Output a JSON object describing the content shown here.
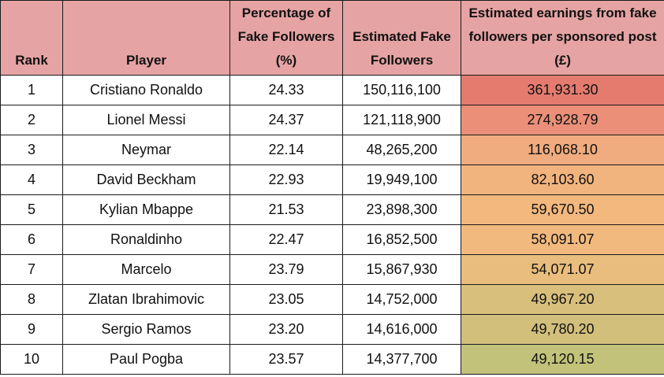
{
  "headers": {
    "rank": "Rank",
    "player": "Player",
    "pct": "Percentage of Fake Followers (%)",
    "fake": "Estimated Fake Followers",
    "earnings": "Estimated earnings from fake followers per sponsored post (£)"
  },
  "header_bg": "#e6a3a3",
  "rows": [
    {
      "rank": "1",
      "player": "Cristiano Ronaldo",
      "pct": "24.33",
      "fake": "150,116,100",
      "earnings": "361,931.30",
      "color": "#e57b6f"
    },
    {
      "rank": "2",
      "player": "Lionel Messi",
      "pct": "24.37",
      "fake": "121,118,900",
      "earnings": "274,928.79",
      "color": "#eb8f78"
    },
    {
      "rank": "3",
      "player": "Neymar",
      "pct": "22.14",
      "fake": "48,265,200",
      "earnings": "116,068.10",
      "color": "#f0ac7e"
    },
    {
      "rank": "4",
      "player": "David Beckham",
      "pct": "22.93",
      "fake": "19,949,100",
      "earnings": "82,103.60",
      "color": "#f2b47e"
    },
    {
      "rank": "5",
      "player": "Kylian Mbappe",
      "pct": "21.53",
      "fake": "23,898,300",
      "earnings": "59,670.50",
      "color": "#f3b87e"
    },
    {
      "rank": "6",
      "player": "Ronaldinho",
      "pct": "22.47",
      "fake": "16,852,500",
      "earnings": "58,091.07",
      "color": "#f2b97e"
    },
    {
      "rank": "7",
      "player": "Marcelo",
      "pct": "23.79",
      "fake": "15,867,930",
      "earnings": "54,071.07",
      "color": "#e9bd7d"
    },
    {
      "rank": "8",
      "player": "Zlatan Ibrahimovic",
      "pct": "23.05",
      "fake": "14,752,000",
      "earnings": "49,967.20",
      "color": "#d9bf7c"
    },
    {
      "rank": "9",
      "player": "Sergio Ramos",
      "pct": "23.20",
      "fake": "14,616,000",
      "earnings": "49,780.20",
      "color": "#d3bf7c"
    },
    {
      "rank": "10",
      "player": "Paul Pogba",
      "pct": "23.57",
      "fake": "14,377,700",
      "earnings": "49,120.15",
      "color": "#c2c27b"
    }
  ]
}
